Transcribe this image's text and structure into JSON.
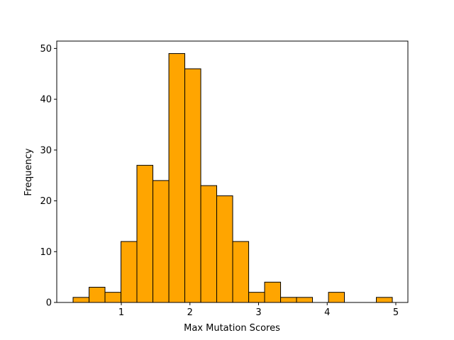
{
  "chart_data": {
    "type": "histogram",
    "xlabel": "Max Mutation Scores",
    "ylabel": "Frequency",
    "bins": [
      0.297,
      0.53,
      0.762,
      0.995,
      1.227,
      1.46,
      1.693,
      1.925,
      2.158,
      2.39,
      2.623,
      2.856,
      3.088,
      3.321,
      3.553,
      3.786,
      4.019,
      4.251,
      4.484,
      4.716,
      4.949
    ],
    "values": [
      1,
      3,
      2,
      12,
      27,
      24,
      49,
      46,
      23,
      21,
      12,
      2,
      4,
      1,
      1,
      0,
      2,
      0,
      0,
      1
    ],
    "color": "#ffa500",
    "edgecolor": "#000000",
    "xlim": [
      0.059,
      5.176
    ],
    "xticks": [
      1,
      2,
      3,
      4,
      5
    ],
    "ylim": [
      0,
      51.45
    ],
    "yticks": [
      0,
      10,
      20,
      30,
      40,
      50
    ]
  }
}
